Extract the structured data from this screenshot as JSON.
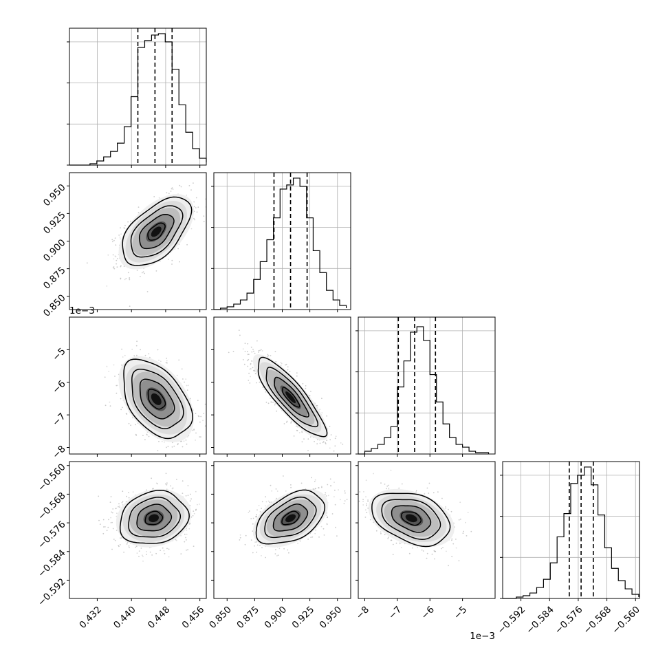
{
  "chart_data": {
    "type": "corner",
    "grid": true,
    "parameters": [
      {
        "index": 0,
        "range": [
          0.4255,
          0.4575
        ],
        "ticks": [
          0.432,
          0.44,
          0.448,
          0.456
        ],
        "tick_labels": [
          "0.432",
          "0.440",
          "0.448",
          "0.456"
        ],
        "quantiles": [
          0.4415,
          0.4455,
          0.4495
        ],
        "offset_text": ""
      },
      {
        "index": 1,
        "range": [
          0.838,
          0.962
        ],
        "ticks": [
          0.85,
          0.875,
          0.9,
          0.925,
          0.95
        ],
        "tick_labels": [
          "0.850",
          "0.875",
          "0.900",
          "0.925",
          "0.950"
        ],
        "quantiles": [
          0.8925,
          0.9075,
          0.9225
        ],
        "offset_text": ""
      },
      {
        "index": 2,
        "range": [
          -8.2,
          -4.0
        ],
        "ticks": [
          -8,
          -7,
          -6,
          -5
        ],
        "tick_labels": [
          "−8",
          "−7",
          "−6",
          "−5"
        ],
        "quantiles": [
          -6.97,
          -6.47,
          -5.83
        ],
        "offset_text": "1e−3"
      },
      {
        "index": 3,
        "range": [
          -0.5971,
          -0.5589
        ],
        "ticks": [
          -0.592,
          -0.584,
          -0.576,
          -0.568,
          -0.56
        ],
        "tick_labels": [
          "−0.592",
          "−0.584",
          "−0.576",
          "−0.568",
          "−0.560"
        ],
        "quantiles": [
          -0.5785,
          -0.5752,
          -0.5718
        ],
        "offset_text": ""
      }
    ],
    "histograms": [
      {
        "param": 0,
        "edges": [
          0.4255,
          0.4271,
          0.4287,
          0.4303,
          0.4319,
          0.4335,
          0.4351,
          0.4367,
          0.4383,
          0.4399,
          0.4415,
          0.4431,
          0.4447,
          0.4463,
          0.4479,
          0.4495,
          0.4511,
          0.4527,
          0.4543,
          0.4559,
          0.4575
        ],
        "counts": [
          0,
          0,
          0,
          0.01,
          0.03,
          0.06,
          0.1,
          0.16,
          0.28,
          0.5,
          0.86,
          0.91,
          0.95,
          0.96,
          0.9,
          0.7,
          0.44,
          0.24,
          0.12,
          0.05,
          0.02
        ]
      },
      {
        "param": 1,
        "edges": [
          0.838,
          0.844,
          0.85,
          0.856,
          0.862,
          0.868,
          0.874,
          0.88,
          0.886,
          0.892,
          0.898,
          0.904,
          0.91,
          0.916,
          0.922,
          0.928,
          0.934,
          0.94,
          0.946,
          0.952,
          0.958
        ],
        "counts": [
          0,
          0.01,
          0.02,
          0.04,
          0.07,
          0.12,
          0.22,
          0.35,
          0.51,
          0.67,
          0.88,
          0.91,
          0.96,
          0.9,
          0.67,
          0.43,
          0.27,
          0.14,
          0.07,
          0.03,
          0.01
        ]
      },
      {
        "param": 2,
        "edges": [
          -8.2,
          -8.0,
          -7.8,
          -7.6,
          -7.4,
          -7.2,
          -7.0,
          -6.8,
          -6.6,
          -6.4,
          -6.2,
          -6.0,
          -5.8,
          -5.6,
          -5.4,
          -5.2,
          -5.0,
          -4.8,
          -4.6,
          -4.4,
          -4.2
        ],
        "counts": [
          0,
          0.02,
          0.04,
          0.07,
          0.12,
          0.2,
          0.49,
          0.68,
          0.89,
          0.93,
          0.83,
          0.58,
          0.38,
          0.22,
          0.12,
          0.07,
          0.05,
          0.02,
          0.01,
          0.01,
          0
        ]
      },
      {
        "param": 3,
        "edges": [
          -0.5971,
          -0.5952,
          -0.5933,
          -0.5914,
          -0.5895,
          -0.5876,
          -0.5857,
          -0.5838,
          -0.5819,
          -0.58,
          -0.5781,
          -0.5762,
          -0.5743,
          -0.5724,
          -0.5705,
          -0.5686,
          -0.5667,
          -0.5648,
          -0.5629,
          -0.561,
          -0.5591
        ],
        "counts": [
          0,
          0,
          0.01,
          0.02,
          0.04,
          0.08,
          0.14,
          0.26,
          0.45,
          0.62,
          0.84,
          0.9,
          0.96,
          0.83,
          0.61,
          0.37,
          0.22,
          0.13,
          0.07,
          0.03,
          0.01
        ]
      }
    ],
    "pairs": [
      {
        "x_param": 0,
        "y_param": 1,
        "center": [
          0.4458,
          0.9085
        ],
        "sd": [
          0.004,
          0.0155
        ],
        "rho": 0.55
      },
      {
        "x_param": 0,
        "y_param": 2,
        "center": [
          0.4458,
          -6.52
        ],
        "sd": [
          0.004,
          0.6
        ],
        "rho": -0.45
      },
      {
        "x_param": 1,
        "y_param": 2,
        "center": [
          0.9075,
          -6.46
        ],
        "sd": [
          0.0155,
          0.6
        ],
        "rho": -0.85
      },
      {
        "x_param": 0,
        "y_param": 3,
        "center": [
          0.4452,
          -0.5747
        ],
        "sd": [
          0.004,
          0.0037
        ],
        "rho": 0.15
      },
      {
        "x_param": 1,
        "y_param": 3,
        "center": [
          0.9075,
          -0.5747
        ],
        "sd": [
          0.0155,
          0.0037
        ],
        "rho": 0.45
      },
      {
        "x_param": 2,
        "y_param": 3,
        "center": [
          -6.57,
          -0.5747
        ],
        "sd": [
          0.6,
          0.0037
        ],
        "rho": -0.35
      }
    ],
    "contour_levels_sigma": [
      0.5,
      1.0,
      1.5,
      2.0
    ]
  }
}
